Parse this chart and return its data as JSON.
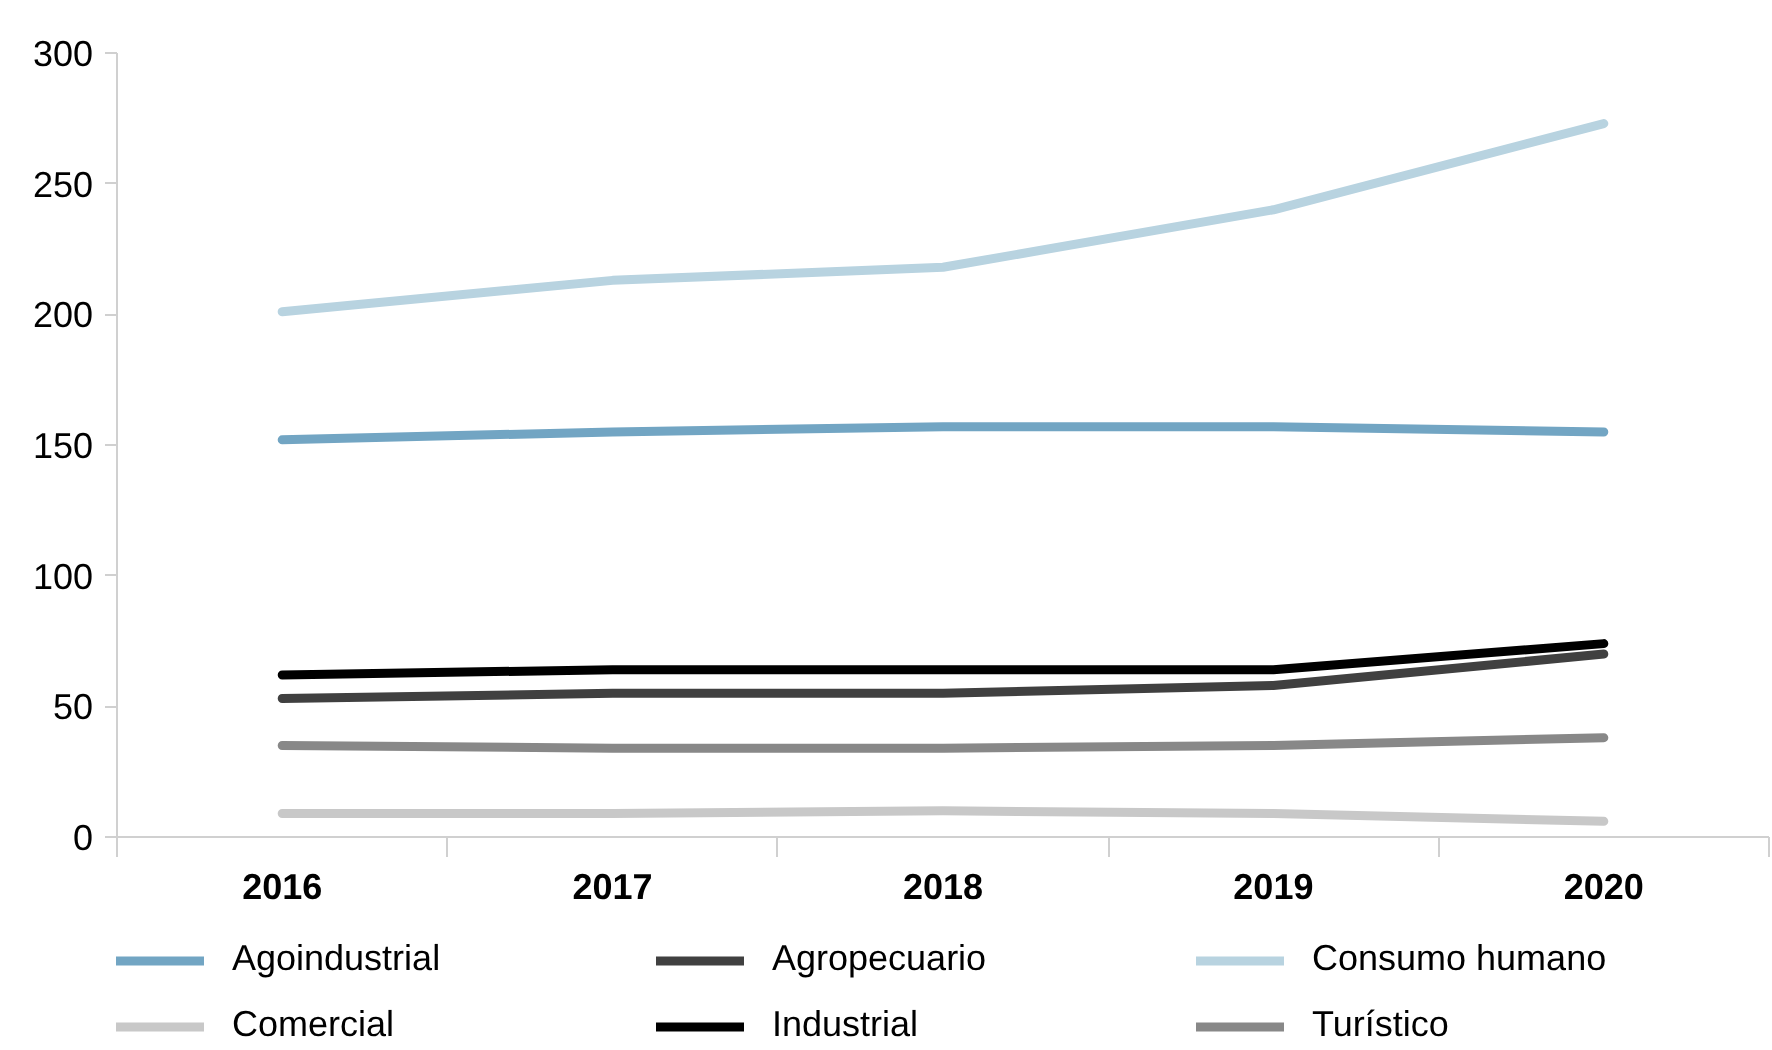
{
  "chart_data": {
    "type": "line",
    "categories": [
      "2016",
      "2017",
      "2018",
      "2019",
      "2020"
    ],
    "series": [
      {
        "name": "Agoindustrial",
        "color": "#72a5c3",
        "values": [
          152,
          155,
          157,
          157,
          155
        ]
      },
      {
        "name": "Agropecuario",
        "color": "#404040",
        "values": [
          53,
          55,
          55,
          58,
          70
        ]
      },
      {
        "name": "Consumo humano",
        "color": "#b8d3e0",
        "values": [
          201,
          213,
          218,
          240,
          273
        ]
      },
      {
        "name": "Comercial",
        "color": "#c8c8c8",
        "values": [
          9,
          9,
          10,
          9,
          6
        ]
      },
      {
        "name": "Industrial",
        "color": "#000000",
        "values": [
          62,
          64,
          64,
          64,
          74
        ]
      },
      {
        "name": "Turístico",
        "color": "#888888",
        "values": [
          35,
          34,
          34,
          35,
          38
        ]
      }
    ],
    "ylim": [
      0,
      300
    ],
    "yticks": [
      0,
      50,
      100,
      150,
      200,
      250,
      300
    ],
    "legend": "bottom"
  }
}
